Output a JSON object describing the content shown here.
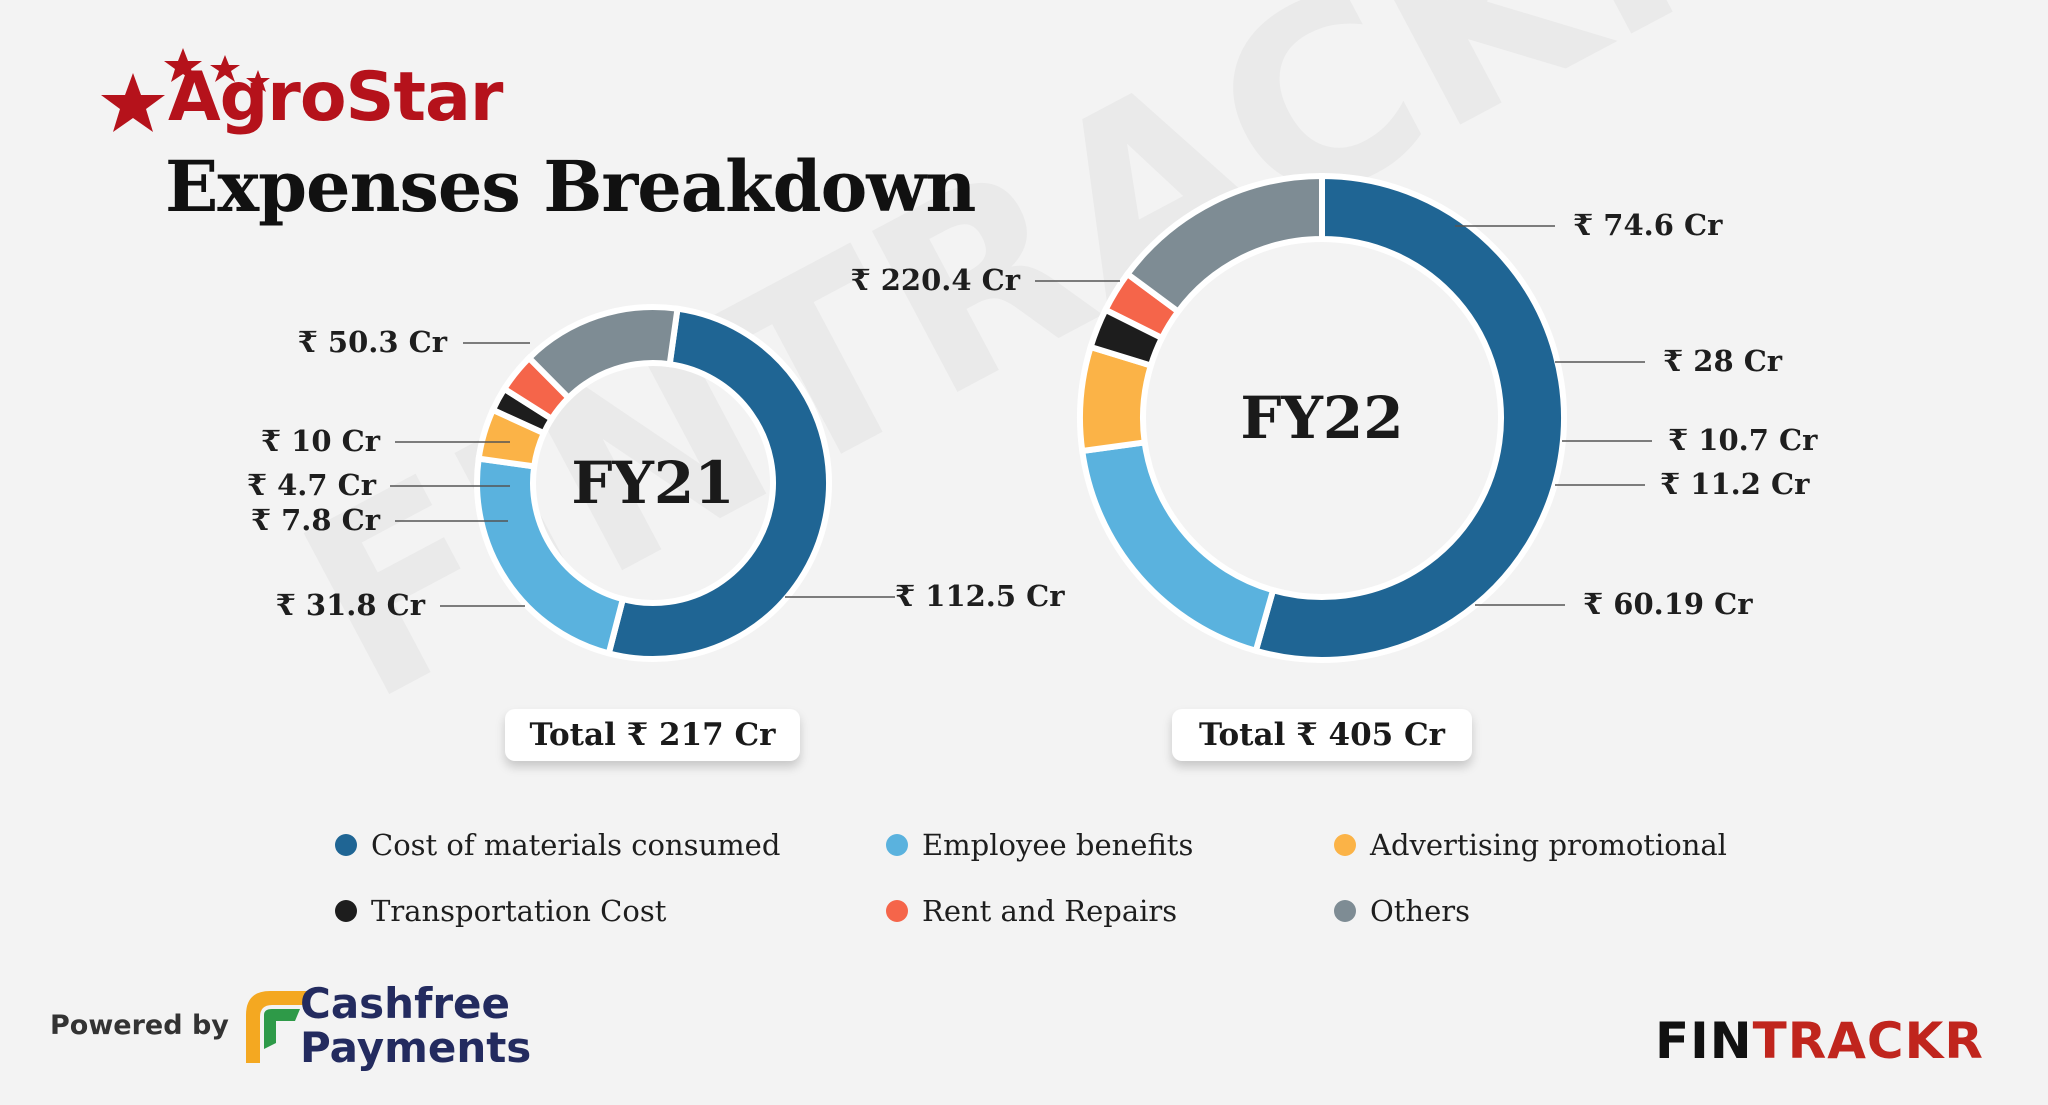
{
  "brand": {
    "name": "AgroStar"
  },
  "title": "Expenses Breakdown",
  "watermark": "FINTRACKR",
  "colors": {
    "cost_of_materials": "#1f6594",
    "employee_benefits": "#5ab2de",
    "advertising": "#fbb347",
    "transportation": "#1d1d1d",
    "rent": "#f5654a",
    "others": "#7e8c94"
  },
  "chart_data": [
    {
      "type": "donut",
      "center_label": "FY21",
      "total_label": "Total ₹ 217 Cr",
      "series": [
        {
          "name": "Cost of materials consumed",
          "value": 112.5,
          "label": "₹ 112.5 Cr"
        },
        {
          "name": "Employee benefits",
          "value": 50.3,
          "label": "₹ 50.3 Cr"
        },
        {
          "name": "Advertising promotional",
          "value": 10,
          "label": "₹ 10 Cr"
        },
        {
          "name": "Transportation Cost",
          "value": 4.7,
          "label": "₹ 4.7 Cr"
        },
        {
          "name": "Rent and Repairs",
          "value": 7.8,
          "label": "₹ 7.8 Cr"
        },
        {
          "name": "Others",
          "value": 31.8,
          "label": "₹ 31.8 Cr"
        }
      ]
    },
    {
      "type": "donut",
      "center_label": "FY22",
      "total_label": "Total ₹ 405 Cr",
      "series": [
        {
          "name": "Cost of materials consumed",
          "value": 220.4,
          "label": "₹ 220.4 Cr"
        },
        {
          "name": "Employee benefits",
          "value": 74.6,
          "label": "₹ 74.6 Cr"
        },
        {
          "name": "Advertising promotional",
          "value": 28,
          "label": "₹ 28 Cr"
        },
        {
          "name": "Transportation Cost",
          "value": 10.7,
          "label": "₹ 10.7 Cr"
        },
        {
          "name": "Rent and Repairs",
          "value": 11.2,
          "label": "₹ 11.2 Cr"
        },
        {
          "name": "Others",
          "value": 60.19,
          "label": "₹ 60.19 Cr"
        }
      ]
    }
  ],
  "legend": [
    {
      "label": "Cost of materials consumed",
      "color": "#1f6594"
    },
    {
      "label": "Employee benefits",
      "color": "#5ab2de"
    },
    {
      "label": "Advertising promotional",
      "color": "#fbb347"
    },
    {
      "label": "Transportation Cost",
      "color": "#1d1d1d"
    },
    {
      "label": "Rent and Repairs",
      "color": "#f5654a"
    },
    {
      "label": "Others",
      "color": "#7e8c94"
    }
  ],
  "footer": {
    "powered_by": "Powered by",
    "partner_line1": "Cashfree",
    "partner_line2": "Payments",
    "publisher_black": "FIN",
    "publisher_red": "TRACKR"
  }
}
